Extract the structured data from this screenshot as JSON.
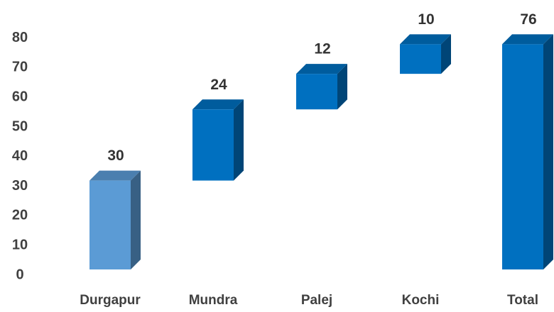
{
  "chart_data": {
    "type": "waterfall",
    "categories": [
      "Durgapur",
      "Mundra",
      "Palej",
      "Kochi",
      "Total"
    ],
    "values": [
      30,
      24,
      12,
      10,
      76
    ],
    "colors": [
      "#5b9bd5",
      "#0070c0",
      "#0070c0",
      "#0070c0",
      "#0070c0"
    ],
    "ylim": [
      0,
      80
    ],
    "yticks": [
      0,
      10,
      20,
      30,
      40,
      50,
      60,
      70,
      80
    ],
    "grid": false
  }
}
